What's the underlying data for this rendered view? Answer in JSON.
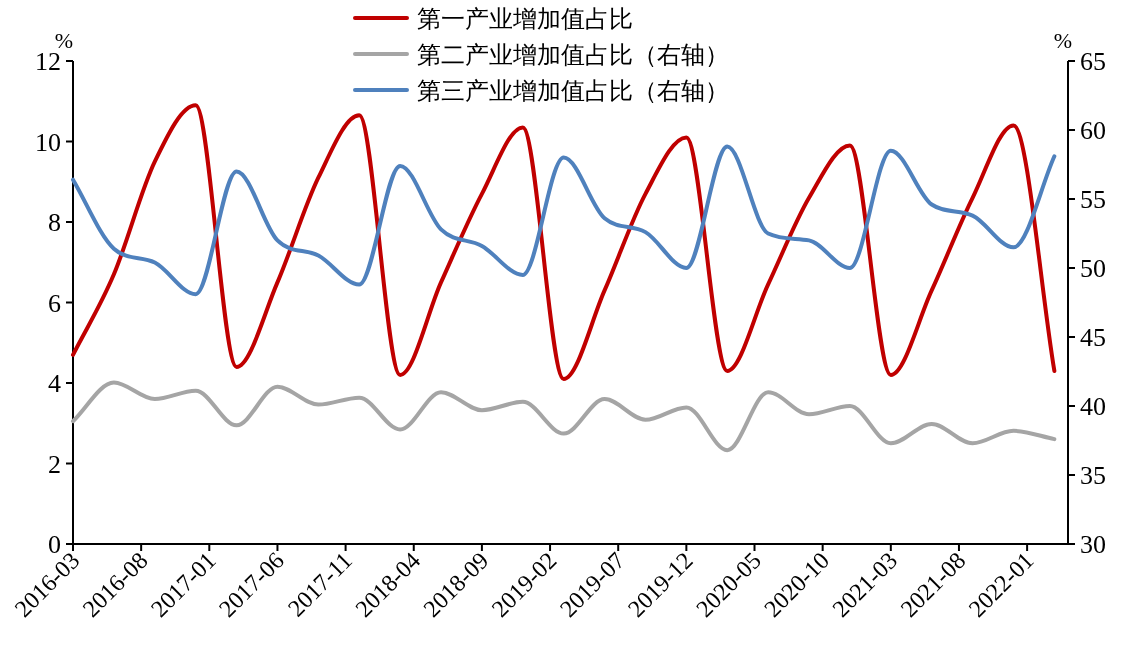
{
  "chart_data": {
    "type": "line",
    "ylabel": "%",
    "y2label": "%",
    "legend": "top",
    "x": [
      "2016-03",
      "2016-06",
      "2016-09",
      "2016-12",
      "2017-03",
      "2017-06",
      "2017-09",
      "2017-12",
      "2018-03",
      "2018-06",
      "2018-09",
      "2018-12",
      "2019-03",
      "2019-06",
      "2019-09",
      "2019-12",
      "2020-03",
      "2020-06",
      "2020-09",
      "2020-12",
      "2021-03",
      "2021-06",
      "2021-09",
      "2021-12",
      "2022-03"
    ],
    "series": [
      {
        "name": "第一产业增加值占比",
        "color": "#c00000",
        "values": [
          4.7,
          6.7,
          9.5,
          10.9,
          4.4,
          6.5,
          9.1,
          10.65,
          4.2,
          6.5,
          8.7,
          10.35,
          4.1,
          6.3,
          8.7,
          10.1,
          4.3,
          6.45,
          8.6,
          9.9,
          4.2,
          6.3,
          8.6,
          10.4,
          4.3
        ]
      },
      {
        "name": "第二产业增加值占比（右轴）",
        "color": "#a5a5a5",
        "axis": "y2",
        "values": [
          38.9,
          41.7,
          40.5,
          41.1,
          38.6,
          41.4,
          40.1,
          40.6,
          38.3,
          41.0,
          39.7,
          40.3,
          38.0,
          40.5,
          39.0,
          39.9,
          36.8,
          41.0,
          39.4,
          40.0,
          37.3,
          38.7,
          37.3,
          38.2,
          37.6
        ]
      },
      {
        "name": "第三产业增加值占比（右轴）",
        "color": "#4f81bd",
        "axis": "y2",
        "values": [
          56.4,
          51.4,
          50.4,
          48.1,
          57.0,
          52.0,
          50.9,
          48.8,
          57.4,
          52.8,
          51.6,
          49.5,
          58.0,
          53.6,
          52.6,
          50.0,
          58.8,
          52.5,
          52.0,
          50.0,
          58.5,
          54.6,
          53.8,
          51.5,
          58.1
        ]
      }
    ],
    "xlim": [
      "2016-03",
      "2022-04"
    ],
    "xticks": [
      "2016-03",
      "2016-08",
      "2017-01",
      "2017-06",
      "2017-11",
      "2018-04",
      "2018-09",
      "2019-02",
      "2019-07",
      "2019-12",
      "2020-05",
      "2020-10",
      "2021-03",
      "2021-08",
      "2022-01"
    ],
    "ylim": [
      0,
      12
    ],
    "yticks": [
      0,
      2,
      4,
      6,
      8,
      10,
      12
    ],
    "y2lim": [
      30,
      65
    ],
    "y2ticks": [
      30,
      35,
      40,
      45,
      50,
      55,
      60,
      65
    ]
  }
}
